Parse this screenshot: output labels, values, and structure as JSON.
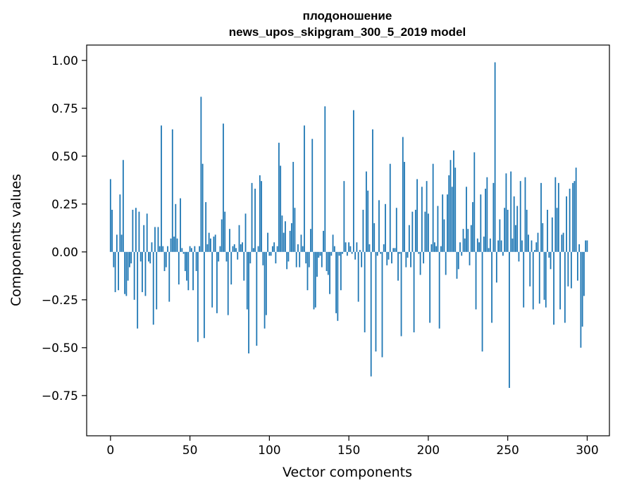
{
  "chart_data": {
    "type": "bar",
    "title": "плодоношение",
    "subtitle": "news_upos_skipgram_300_5_2019 model",
    "xlabel": "Vector components",
    "ylabel": "Components values",
    "xlim": [
      -15,
      314
    ],
    "ylim": [
      -0.96,
      1.08
    ],
    "xticks": [
      0,
      50,
      100,
      150,
      200,
      250,
      300
    ],
    "yticks": [
      -0.75,
      -0.5,
      -0.25,
      0.0,
      0.25,
      0.5,
      0.75,
      1.0
    ],
    "ytick_labels": [
      "−0.75",
      "−0.50",
      "−0.25",
      "0.00",
      "0.25",
      "0.50",
      "0.75",
      "1.00"
    ],
    "grid": false,
    "bar_color": "#1f77b4",
    "values": [
      0.38,
      0.22,
      -0.08,
      -0.21,
      0.09,
      -0.2,
      0.3,
      0.09,
      0.48,
      -0.22,
      -0.23,
      -0.15,
      -0.08,
      -0.06,
      0.22,
      -0.25,
      0.23,
      -0.4,
      0.21,
      -0.05,
      -0.21,
      0.14,
      -0.23,
      0.2,
      -0.05,
      -0.06,
      0.05,
      -0.38,
      0.13,
      -0.3,
      0.13,
      0.03,
      0.66,
      0.03,
      -0.1,
      -0.08,
      0.03,
      -0.26,
      0.07,
      0.64,
      0.08,
      0.25,
      0.07,
      -0.17,
      0.28,
      0.02,
      -0.01,
      -0.1,
      -0.15,
      -0.2,
      0.03,
      0.02,
      -0.2,
      0.03,
      -0.1,
      -0.47,
      0.03,
      0.81,
      0.46,
      -0.45,
      0.26,
      0.04,
      0.1,
      0.07,
      -0.29,
      0.08,
      0.09,
      -0.32,
      -0.05,
      0.03,
      0.17,
      0.67,
      0.21,
      -0.05,
      -0.33,
      0.12,
      -0.17,
      0.03,
      0.04,
      0.02,
      -0.04,
      0.14,
      0.04,
      0.05,
      -0.15,
      0.2,
      -0.3,
      -0.53,
      -0.06,
      0.36,
      0.02,
      0.33,
      -0.49,
      0.03,
      0.4,
      0.37,
      -0.07,
      -0.4,
      -0.33,
      0.1,
      -0.02,
      -0.02,
      0.03,
      0.05,
      -0.06,
      0.03,
      0.57,
      0.45,
      0.19,
      0.1,
      0.16,
      -0.09,
      -0.05,
      0.11,
      0.15,
      0.47,
      0.23,
      -0.08,
      0.04,
      -0.08,
      0.09,
      0.03,
      0.66,
      -0.06,
      -0.2,
      -0.08,
      0.12,
      0.59,
      -0.3,
      -0.29,
      -0.13,
      -0.03,
      -0.02,
      -0.08,
      0.11,
      0.76,
      -0.1,
      -0.12,
      -0.22,
      -0.02,
      0.09,
      0.03,
      -0.32,
      -0.36,
      -0.02,
      -0.2,
      -0.01,
      0.37,
      0.05,
      -0.02,
      0.05,
      0.03,
      -0.01,
      0.74,
      -0.04,
      0.05,
      -0.26,
      0.01,
      -0.08,
      0.22,
      -0.42,
      0.42,
      0.32,
      0.04,
      -0.65,
      0.64,
      0.15,
      -0.52,
      -0.02,
      0.27,
      -0.01,
      -0.55,
      0.04,
      0.25,
      -0.07,
      -0.04,
      0.46,
      -0.06,
      0.02,
      0.02,
      0.23,
      -0.15,
      -0.01,
      -0.44,
      0.6,
      0.47,
      -0.08,
      -0.03,
      0.14,
      -0.08,
      0.21,
      -0.42,
      0.22,
      0.38,
      -0.01,
      -0.12,
      0.34,
      -0.06,
      0.21,
      0.37,
      0.2,
      -0.37,
      0.04,
      0.46,
      0.05,
      0.03,
      0.24,
      -0.4,
      0.03,
      0.3,
      0.17,
      -0.12,
      0.3,
      0.4,
      0.48,
      0.34,
      0.53,
      0.44,
      -0.14,
      -0.09,
      0.05,
      -0.02,
      0.12,
      0.07,
      0.34,
      0.12,
      -0.07,
      0.14,
      0.26,
      0.52,
      -0.3,
      0.07,
      0.05,
      0.3,
      -0.52,
      0.08,
      0.33,
      0.39,
      0.02,
      0.07,
      -0.37,
      0.36,
      0.99,
      -0.16,
      0.06,
      0.17,
      0.06,
      -0.02,
      0.23,
      0.41,
      0.22,
      -0.71,
      0.42,
      0.07,
      0.29,
      0.14,
      0.24,
      -0.05,
      0.37,
      0.06,
      -0.29,
      0.39,
      0.22,
      0.09,
      -0.18,
      0.06,
      -0.3,
      0.01,
      0.05,
      0.1,
      -0.27,
      0.36,
      0.15,
      -0.25,
      -0.29,
      0.22,
      -0.03,
      -0.09,
      0.18,
      -0.38,
      0.39,
      0.23,
      0.36,
      -0.3,
      0.09,
      0.1,
      -0.37,
      0.29,
      -0.18,
      0.33,
      -0.19,
      0.36,
      0.37,
      0.44,
      -0.15,
      0.04,
      -0.5,
      -0.39,
      -0.23,
      0.06,
      0.06
    ]
  }
}
